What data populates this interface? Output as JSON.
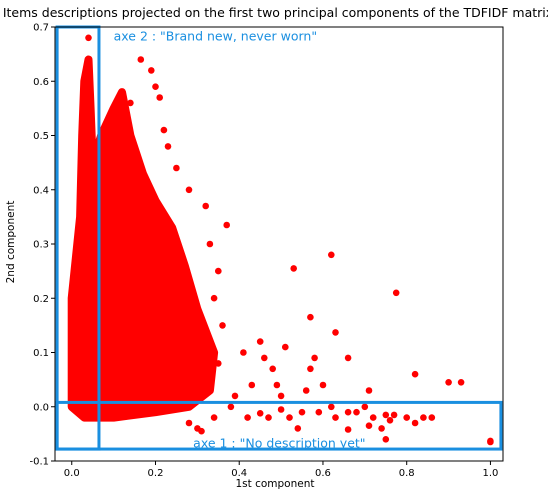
{
  "chart_data": {
    "type": "scatter",
    "title": "Items descriptions projected on the first two principal components of the TDFIDF matrix",
    "xlabel": "1st component",
    "ylabel": "2nd component",
    "xlim": [
      -0.04,
      1.03
    ],
    "ylim": [
      -0.1,
      0.7
    ],
    "x_ticks": [
      "0.0",
      "0.2",
      "0.4",
      "0.6",
      "0.8",
      "1.0"
    ],
    "y_ticks": [
      "-0.1",
      "0.0",
      "0.1",
      "0.2",
      "0.3",
      "0.4",
      "0.5",
      "0.6",
      "0.7"
    ],
    "grid": false,
    "marker_color": "#ff0000",
    "box_color": "#1a8fe0",
    "dense_cloud": {
      "description": "dense region of thousands of points",
      "outline": [
        [
          0.0,
          0.0
        ],
        [
          0.0,
          0.2
        ],
        [
          0.02,
          0.35
        ],
        [
          0.025,
          0.5
        ],
        [
          0.03,
          0.6
        ],
        [
          0.04,
          0.64
        ],
        [
          0.045,
          0.55
        ],
        [
          0.05,
          0.45
        ],
        [
          0.07,
          0.5
        ],
        [
          0.1,
          0.55
        ],
        [
          0.12,
          0.58
        ],
        [
          0.14,
          0.5
        ],
        [
          0.17,
          0.43
        ],
        [
          0.2,
          0.38
        ],
        [
          0.24,
          0.33
        ],
        [
          0.27,
          0.26
        ],
        [
          0.3,
          0.18
        ],
        [
          0.34,
          0.1
        ],
        [
          0.33,
          0.03
        ],
        [
          0.28,
          0.0
        ],
        [
          0.2,
          -0.01
        ],
        [
          0.1,
          -0.02
        ],
        [
          0.03,
          -0.02
        ]
      ]
    },
    "points": [
      [
        0.04,
        0.68
      ],
      [
        0.165,
        0.64
      ],
      [
        0.19,
        0.62
      ],
      [
        0.2,
        0.59
      ],
      [
        0.14,
        0.56
      ],
      [
        0.21,
        0.57
      ],
      [
        0.22,
        0.51
      ],
      [
        0.23,
        0.48
      ],
      [
        0.25,
        0.44
      ],
      [
        0.28,
        0.4
      ],
      [
        0.32,
        0.37
      ],
      [
        0.37,
        0.335
      ],
      [
        0.33,
        0.3
      ],
      [
        0.35,
        0.25
      ],
      [
        0.34,
        0.2
      ],
      [
        0.36,
        0.15
      ],
      [
        0.31,
        0.13
      ],
      [
        0.35,
        0.08
      ],
      [
        0.53,
        0.255
      ],
      [
        0.62,
        0.28
      ],
      [
        0.57,
        0.165
      ],
      [
        0.63,
        0.137
      ],
      [
        0.45,
        0.12
      ],
      [
        0.41,
        0.1
      ],
      [
        0.46,
        0.09
      ],
      [
        0.51,
        0.11
      ],
      [
        0.58,
        0.09
      ],
      [
        0.66,
        0.09
      ],
      [
        0.57,
        0.07
      ],
      [
        0.48,
        0.07
      ],
      [
        0.43,
        0.04
      ],
      [
        0.49,
        0.04
      ],
      [
        0.5,
        0.02
      ],
      [
        0.6,
        0.04
      ],
      [
        0.56,
        0.03
      ],
      [
        0.39,
        0.02
      ],
      [
        0.38,
        0.0
      ],
      [
        0.42,
        -0.02
      ],
      [
        0.47,
        -0.02
      ],
      [
        0.52,
        -0.02
      ],
      [
        0.55,
        -0.01
      ],
      [
        0.59,
        -0.01
      ],
      [
        0.63,
        -0.02
      ],
      [
        0.68,
        -0.01
      ],
      [
        0.72,
        -0.02
      ],
      [
        0.75,
        -0.015
      ],
      [
        0.77,
        -0.015
      ],
      [
        0.8,
        -0.02
      ],
      [
        0.84,
        -0.02
      ],
      [
        0.9,
        0.045
      ],
      [
        0.93,
        0.045
      ],
      [
        0.86,
        -0.02
      ],
      [
        0.82,
        -0.03
      ],
      [
        0.76,
        -0.025
      ],
      [
        0.71,
        -0.035
      ],
      [
        0.66,
        -0.042
      ],
      [
        0.75,
        -0.06
      ],
      [
        0.775,
        0.21
      ],
      [
        0.82,
        0.06
      ],
      [
        0.71,
        0.03
      ],
      [
        0.5,
        -0.005
      ],
      [
        0.45,
        -0.012
      ],
      [
        0.54,
        -0.04
      ],
      [
        0.66,
        -0.01
      ],
      [
        0.62,
        0.0
      ],
      [
        0.7,
        0.0
      ],
      [
        0.74,
        -0.04
      ],
      [
        1.0,
        -0.065
      ],
      [
        1.0,
        -0.063
      ],
      [
        0.3,
        -0.04
      ],
      [
        0.31,
        -0.045
      ],
      [
        0.28,
        -0.03
      ],
      [
        0.34,
        -0.02
      ]
    ],
    "annotations": [
      {
        "text": "axe 2 : \"Brand new, never worn\"",
        "anchor": [
          0.1,
          0.675
        ]
      },
      {
        "text": "axe 1 : \"No description yet\"",
        "anchor": [
          0.29,
          -0.075
        ]
      }
    ],
    "boxes": [
      {
        "name": "axe-2-box",
        "x": [
          -0.035,
          0.065
        ],
        "y": [
          -0.078,
          0.7
        ]
      },
      {
        "name": "axe-1-box",
        "x": [
          -0.035,
          1.025
        ],
        "y": [
          -0.078,
          0.008
        ]
      }
    ]
  }
}
